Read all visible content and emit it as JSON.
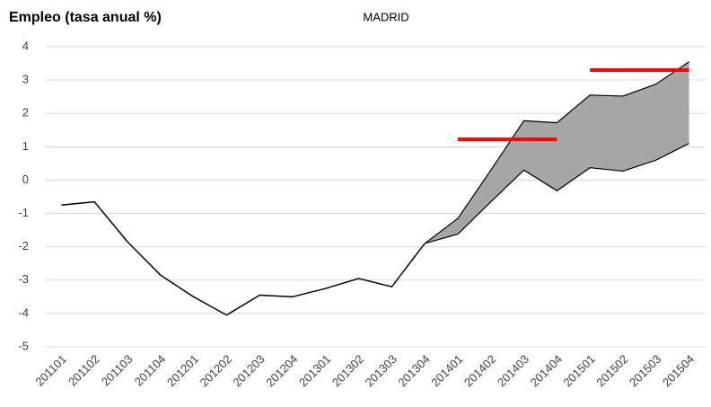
{
  "chart_data": {
    "type": "line",
    "title": "Empleo (tasa anual %)",
    "subtitle": "MADRID",
    "categories": [
      "201101",
      "201102",
      "201103",
      "201104",
      "201201",
      "201202",
      "201203",
      "201204",
      "201301",
      "201302",
      "201303",
      "201304",
      "201401",
      "201402",
      "201403",
      "201404",
      "201501",
      "201502",
      "201503",
      "201504"
    ],
    "series": [
      {
        "color": "#000000",
        "width": 1.5,
        "values": [
          -0.75,
          -0.65,
          -1.85,
          -2.85,
          -3.5,
          -4.05,
          -3.45,
          -3.5,
          -3.25,
          -2.95,
          -3.2,
          -1.9,
          null,
          null,
          null,
          null,
          null,
          null,
          null,
          null
        ]
      },
      {
        "color": "#000000",
        "width": 1.2,
        "fill": "#a6a6a6",
        "values": [
          null,
          null,
          null,
          null,
          null,
          null,
          null,
          null,
          null,
          null,
          null,
          -1.9,
          -1.15,
          0.3,
          1.78,
          1.72,
          2.55,
          2.52,
          2.88,
          3.55
        ]
      },
      {
        "color": "#000000",
        "width": 1.2,
        "values": [
          null,
          null,
          null,
          null,
          null,
          null,
          null,
          null,
          null,
          null,
          null,
          -1.9,
          -1.62,
          -0.65,
          0.3,
          -0.32,
          0.37,
          0.27,
          0.6,
          1.1
        ]
      },
      {
        "color": "#ff0000",
        "width": 4,
        "values": [
          null,
          null,
          null,
          null,
          null,
          null,
          null,
          null,
          null,
          null,
          null,
          null,
          1.22,
          1.22,
          1.22,
          1.22,
          null,
          null,
          null,
          null
        ]
      },
      {
        "color": "#ff0000",
        "width": 4,
        "values": [
          null,
          null,
          null,
          null,
          null,
          null,
          null,
          null,
          null,
          null,
          null,
          null,
          null,
          null,
          null,
          null,
          3.3,
          3.3,
          3.3,
          3.3
        ]
      }
    ],
    "ylim": [
      -5,
      4
    ],
    "yticks": [
      -5,
      -4,
      -3,
      -2,
      -1,
      0,
      1,
      2,
      3,
      4
    ],
    "grid": true
  }
}
